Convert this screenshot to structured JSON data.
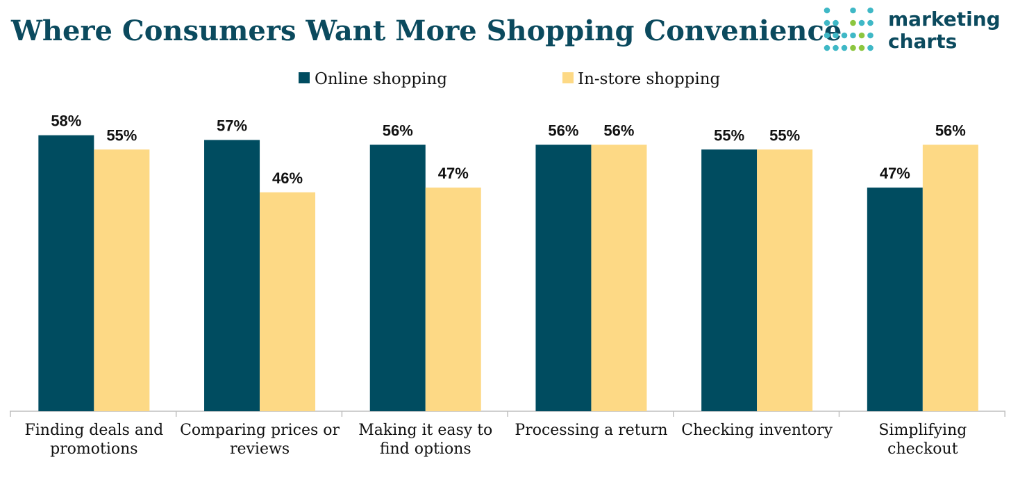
{
  "colors": {
    "title": "#0b4a5e",
    "online": "#004c60",
    "instore": "#fdd985",
    "text": "#111111",
    "axis": "#bfbfbf",
    "logo_teal": "#3fb8c6",
    "logo_green": "#8cc63f",
    "logo_text": "#0b4a5e"
  },
  "logo": {
    "line1": "marketing",
    "line2": "charts"
  },
  "chart_data": {
    "type": "bar",
    "title": "Where Consumers Want More Shopping Convenience",
    "xlabel": "",
    "ylabel": "",
    "ylim": [
      0,
      100
    ],
    "grid": false,
    "legend_position": "top-center",
    "categories": [
      [
        "Finding deals and",
        "promotions"
      ],
      [
        "Comparing prices or",
        "reviews"
      ],
      [
        "Making it easy to",
        "find options"
      ],
      [
        "Processing a return"
      ],
      [
        "Checking inventory"
      ],
      [
        "Simplifying",
        "checkout"
      ]
    ],
    "series": [
      {
        "name": "Online shopping",
        "values": [
          58,
          57,
          56,
          56,
          55,
          47
        ],
        "labels": [
          "58%",
          "57%",
          "56%",
          "56%",
          "55%",
          "47%"
        ]
      },
      {
        "name": "In-store shopping",
        "values": [
          55,
          46,
          47,
          56,
          55,
          56
        ],
        "labels": [
          "55%",
          "46%",
          "47%",
          "56%",
          "55%",
          "56%"
        ]
      }
    ]
  }
}
